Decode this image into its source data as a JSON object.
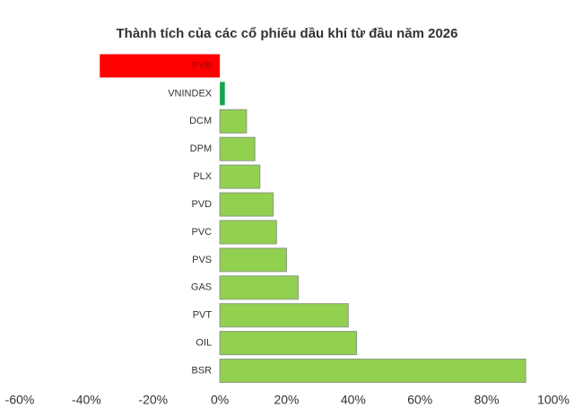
{
  "chart_data": {
    "type": "bar",
    "orientation": "horizontal",
    "title": "Thành tích của các cổ phiếu dầu khí từ đầu năm 2026",
    "categories": [
      "PVB",
      "VNINDEX",
      "DCM",
      "DPM",
      "PLX",
      "PVD",
      "PVC",
      "PVS",
      "GAS",
      "PVT",
      "OIL",
      "BSR"
    ],
    "values": [
      -36,
      1.5,
      8,
      10.5,
      12,
      16,
      17,
      20,
      23.5,
      38.5,
      41,
      91.7
    ],
    "colors": [
      "#ff0000",
      "#14a44d",
      "#92d050",
      "#92d050",
      "#92d050",
      "#92d050",
      "#92d050",
      "#92d050",
      "#92d050",
      "#92d050",
      "#92d050",
      "#92d050"
    ],
    "xlim": [
      -60,
      100
    ],
    "xticks": [
      {
        "value": -60,
        "label": "-60%"
      },
      {
        "value": -40,
        "label": "-40%"
      },
      {
        "value": -20,
        "label": "-20%"
      },
      {
        "value": 0,
        "label": "0%"
      },
      {
        "value": 20,
        "label": "20%"
      },
      {
        "value": 40,
        "label": "40%"
      },
      {
        "value": 60,
        "label": "60%"
      },
      {
        "value": 80,
        "label": "80%"
      },
      {
        "value": 100,
        "label": "100%"
      }
    ],
    "grid": false
  }
}
